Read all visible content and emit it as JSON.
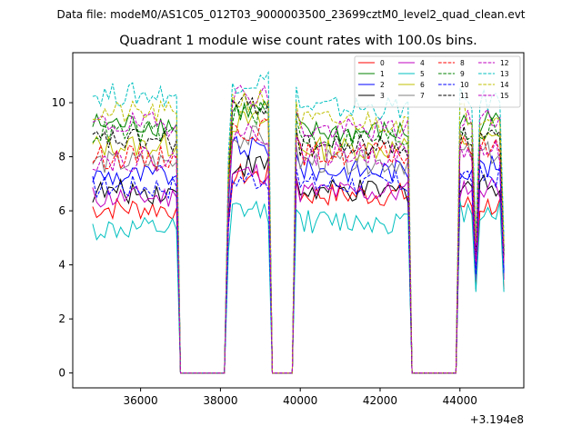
{
  "figure": {
    "suptitle": "Data file: modeM0/AS1C05_012T03_9000003500_23699cztM0_level2_quad_clean.evt"
  },
  "chart_data": {
    "type": "line",
    "title": "Quadrant 1 module wise count rates with 100.0s bins.",
    "xlabel": "",
    "ylabel": "",
    "x_offset_label": "+3.194e8",
    "xlim": [
      34300,
      45600
    ],
    "ylim": [
      -0.55,
      11.85
    ],
    "x_ticks": [
      36000,
      38000,
      40000,
      42000,
      44000
    ],
    "x_tick_labels": [
      "36000",
      "38000",
      "40000",
      "42000",
      "44000"
    ],
    "y_ticks": [
      0,
      2,
      4,
      6,
      8,
      10
    ],
    "y_tick_labels": [
      "0",
      "2",
      "4",
      "6",
      "8",
      "10"
    ],
    "legend_position": "top-right",
    "segments": [
      {
        "start": 34800,
        "end": 36900,
        "drop_to": 37000
      },
      {
        "start": 38200,
        "end": 39200,
        "drop_to": 39300
      },
      {
        "start": 39900,
        "end": 42700,
        "drop_to": 42800
      },
      {
        "start": 44000,
        "end": 45100,
        "drop_to": null
      }
    ],
    "zero_gaps": [
      [
        37000,
        38100
      ],
      [
        39300,
        39800
      ],
      [
        42800,
        43900
      ]
    ],
    "late_dip": {
      "x": 44400,
      "factor": 0.5
    },
    "series": [
      {
        "name": "0",
        "color": "#ff0000",
        "dash": false,
        "levels": [
          6.1,
          7.3,
          6.6,
          6.2
        ]
      },
      {
        "name": "1",
        "color": "#008000",
        "dash": false,
        "levels": [
          9.2,
          9.7,
          8.9,
          9.3
        ]
      },
      {
        "name": "2",
        "color": "#0000ff",
        "dash": false,
        "levels": [
          7.3,
          8.3,
          7.5,
          7.6
        ]
      },
      {
        "name": "3",
        "color": "#000000",
        "dash": false,
        "levels": [
          6.7,
          7.7,
          6.7,
          7.0
        ]
      },
      {
        "name": "4",
        "color": "#bf00bf",
        "dash": false,
        "levels": [
          6.5,
          7.4,
          6.7,
          6.9
        ]
      },
      {
        "name": "5",
        "color": "#00bfbf",
        "dash": false,
        "levels": [
          5.3,
          6.0,
          5.6,
          6.0
        ]
      },
      {
        "name": "6",
        "color": "#bfbf00",
        "dash": false,
        "levels": [
          8.4,
          9.3,
          8.3,
          8.6
        ]
      },
      {
        "name": "7",
        "color": "#808080",
        "dash": false,
        "levels": [
          7.8,
          8.7,
          7.8,
          8.1
        ]
      },
      {
        "name": "8",
        "color": "#ff0000",
        "dash": true,
        "levels": [
          8.0,
          9.0,
          8.1,
          8.3
        ]
      },
      {
        "name": "9",
        "color": "#008000",
        "dash": true,
        "levels": [
          8.9,
          9.6,
          8.7,
          9.0
        ]
      },
      {
        "name": "10",
        "color": "#0000ff",
        "dash": true,
        "levels": [
          6.9,
          7.2,
          7.0,
          7.3
        ]
      },
      {
        "name": "11",
        "color": "#000000",
        "dash": true,
        "levels": [
          8.6,
          9.9,
          8.4,
          8.7
        ]
      },
      {
        "name": "12",
        "color": "#bf00bf",
        "dash": true,
        "levels": [
          9.2,
          10.3,
          9.0,
          9.4
        ]
      },
      {
        "name": "13",
        "color": "#00bfbf",
        "dash": true,
        "levels": [
          10.3,
          10.8,
          9.8,
          10.1
        ]
      },
      {
        "name": "14",
        "color": "#bfbf00",
        "dash": true,
        "levels": [
          9.6,
          10.1,
          9.3,
          9.6
        ]
      },
      {
        "name": "15",
        "color": "#bf00bf",
        "dash": true,
        "levels": [
          7.9,
          8.9,
          8.1,
          8.2
        ]
      }
    ]
  }
}
